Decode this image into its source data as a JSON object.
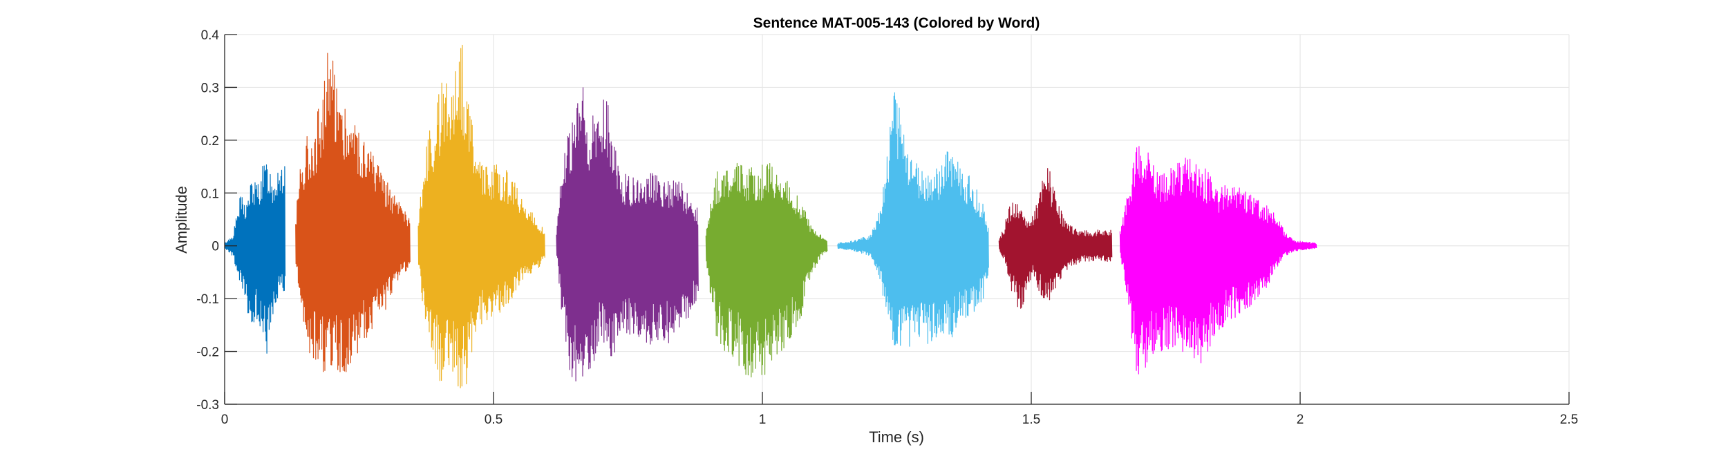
{
  "chart_data": {
    "type": "line",
    "title": "Sentence MAT-005-143 (Colored by Word)",
    "xlabel": "Time (s)",
    "ylabel": "Amplitude",
    "xlim": [
      0,
      2.5
    ],
    "ylim": [
      -0.3,
      0.4
    ],
    "x_ticks": [
      0,
      0.5,
      1,
      1.5,
      2,
      2.5
    ],
    "y_ticks": [
      -0.3,
      -0.2,
      -0.1,
      0,
      0.1,
      0.2,
      0.3,
      0.4
    ],
    "x_tick_labels": [
      "0",
      "0.5",
      "1",
      "1.5",
      "2",
      "2.5"
    ],
    "y_tick_labels": [
      "-0.3",
      "-0.2",
      "-0.1",
      "0",
      "0.1",
      "0.2",
      "0.3",
      "0.4"
    ],
    "grid": true,
    "series": [
      {
        "color": "#0072BD",
        "t_start": 0.0,
        "t_end": 0.113,
        "envelope": [
          [
            0.0,
            0.005,
            -0.005
          ],
          [
            0.015,
            0.02,
            -0.02
          ],
          [
            0.03,
            0.1,
            -0.09
          ],
          [
            0.04,
            0.08,
            -0.12
          ],
          [
            0.05,
            0.13,
            -0.17
          ],
          [
            0.06,
            0.12,
            -0.14
          ],
          [
            0.07,
            0.15,
            -0.2
          ],
          [
            0.08,
            0.17,
            -0.21
          ],
          [
            0.09,
            0.13,
            -0.15
          ],
          [
            0.1,
            0.17,
            -0.1
          ],
          [
            0.113,
            0.16,
            -0.09
          ]
        ]
      },
      {
        "color": "#D95319",
        "t_start": 0.132,
        "t_end": 0.345,
        "envelope": [
          [
            0.132,
            0.05,
            -0.04
          ],
          [
            0.14,
            0.16,
            -0.12
          ],
          [
            0.155,
            0.22,
            -0.2
          ],
          [
            0.17,
            0.24,
            -0.23
          ],
          [
            0.18,
            0.3,
            -0.24
          ],
          [
            0.19,
            0.37,
            -0.25
          ],
          [
            0.2,
            0.37,
            -0.23
          ],
          [
            0.21,
            0.33,
            -0.24
          ],
          [
            0.22,
            0.28,
            -0.25
          ],
          [
            0.24,
            0.25,
            -0.22
          ],
          [
            0.26,
            0.21,
            -0.18
          ],
          [
            0.28,
            0.17,
            -0.15
          ],
          [
            0.3,
            0.13,
            -0.12
          ],
          [
            0.32,
            0.09,
            -0.07
          ],
          [
            0.345,
            0.05,
            -0.04
          ]
        ]
      },
      {
        "color": "#EDB120",
        "t_start": 0.36,
        "t_end": 0.595,
        "envelope": [
          [
            0.36,
            0.05,
            -0.04
          ],
          [
            0.37,
            0.16,
            -0.14
          ],
          [
            0.38,
            0.22,
            -0.2
          ],
          [
            0.39,
            0.24,
            -0.22
          ],
          [
            0.4,
            0.3,
            -0.26
          ],
          [
            0.41,
            0.33,
            -0.25
          ],
          [
            0.42,
            0.35,
            -0.24
          ],
          [
            0.43,
            0.38,
            -0.26
          ],
          [
            0.44,
            0.4,
            -0.28
          ],
          [
            0.45,
            0.33,
            -0.26
          ],
          [
            0.46,
            0.25,
            -0.2
          ],
          [
            0.48,
            0.15,
            -0.14
          ],
          [
            0.5,
            0.16,
            -0.14
          ],
          [
            0.52,
            0.15,
            -0.12
          ],
          [
            0.54,
            0.12,
            -0.09
          ],
          [
            0.56,
            0.08,
            -0.06
          ],
          [
            0.575,
            0.06,
            -0.05
          ],
          [
            0.595,
            0.03,
            -0.03
          ]
        ]
      },
      {
        "color": "#7E2F8E",
        "t_start": 0.617,
        "t_end": 0.88,
        "envelope": [
          [
            0.617,
            0.03,
            -0.02
          ],
          [
            0.625,
            0.15,
            -0.12
          ],
          [
            0.635,
            0.2,
            -0.2
          ],
          [
            0.645,
            0.23,
            -0.26
          ],
          [
            0.655,
            0.27,
            -0.28
          ],
          [
            0.665,
            0.31,
            -0.27
          ],
          [
            0.675,
            0.25,
            -0.27
          ],
          [
            0.69,
            0.25,
            -0.2
          ],
          [
            0.7,
            0.28,
            -0.17
          ],
          [
            0.71,
            0.29,
            -0.2
          ],
          [
            0.72,
            0.24,
            -0.22
          ],
          [
            0.735,
            0.14,
            -0.17
          ],
          [
            0.76,
            0.13,
            -0.17
          ],
          [
            0.79,
            0.14,
            -0.19
          ],
          [
            0.82,
            0.13,
            -0.19
          ],
          [
            0.85,
            0.12,
            -0.16
          ],
          [
            0.88,
            0.07,
            -0.1
          ]
        ]
      },
      {
        "color": "#77AC30",
        "t_start": 0.895,
        "t_end": 1.12,
        "envelope": [
          [
            0.895,
            0.03,
            -0.03
          ],
          [
            0.905,
            0.1,
            -0.12
          ],
          [
            0.915,
            0.14,
            -0.18
          ],
          [
            0.93,
            0.15,
            -0.2
          ],
          [
            0.95,
            0.16,
            -0.22
          ],
          [
            0.97,
            0.15,
            -0.25
          ],
          [
            0.99,
            0.15,
            -0.26
          ],
          [
            1.01,
            0.16,
            -0.24
          ],
          [
            1.03,
            0.14,
            -0.21
          ],
          [
            1.05,
            0.12,
            -0.18
          ],
          [
            1.07,
            0.09,
            -0.14
          ],
          [
            1.09,
            0.04,
            -0.06
          ],
          [
            1.11,
            0.02,
            -0.02
          ],
          [
            1.12,
            0.01,
            -0.01
          ]
        ]
      },
      {
        "color": "#4DBEEE",
        "t_start": 1.14,
        "t_end": 1.42,
        "envelope": [
          [
            1.14,
            0.005,
            -0.005
          ],
          [
            1.17,
            0.01,
            -0.01
          ],
          [
            1.2,
            0.02,
            -0.02
          ],
          [
            1.22,
            0.08,
            -0.07
          ],
          [
            1.23,
            0.17,
            -0.15
          ],
          [
            1.24,
            0.26,
            -0.18
          ],
          [
            1.245,
            0.31,
            -0.2
          ],
          [
            1.255,
            0.26,
            -0.2
          ],
          [
            1.27,
            0.2,
            -0.21
          ],
          [
            1.29,
            0.15,
            -0.19
          ],
          [
            1.31,
            0.14,
            -0.19
          ],
          [
            1.33,
            0.15,
            -0.18
          ],
          [
            1.35,
            0.2,
            -0.18
          ],
          [
            1.37,
            0.15,
            -0.15
          ],
          [
            1.39,
            0.13,
            -0.13
          ],
          [
            1.41,
            0.08,
            -0.1
          ],
          [
            1.42,
            0.04,
            -0.05
          ]
        ]
      },
      {
        "color": "#A2142F",
        "t_start": 1.44,
        "t_end": 1.65,
        "envelope": [
          [
            1.44,
            0.01,
            -0.01
          ],
          [
            1.45,
            0.04,
            -0.03
          ],
          [
            1.46,
            0.08,
            -0.08
          ],
          [
            1.47,
            0.09,
            -0.1
          ],
          [
            1.48,
            0.07,
            -0.14
          ],
          [
            1.49,
            0.06,
            -0.1
          ],
          [
            1.5,
            0.05,
            -0.06
          ],
          [
            1.51,
            0.08,
            -0.08
          ],
          [
            1.52,
            0.13,
            -0.1
          ],
          [
            1.53,
            0.16,
            -0.11
          ],
          [
            1.54,
            0.12,
            -0.09
          ],
          [
            1.55,
            0.08,
            -0.07
          ],
          [
            1.57,
            0.04,
            -0.04
          ],
          [
            1.6,
            0.03,
            -0.03
          ],
          [
            1.65,
            0.03,
            -0.03
          ]
        ]
      },
      {
        "color": "#FF00FF",
        "t_start": 1.665,
        "t_end": 2.03,
        "envelope": [
          [
            1.665,
            0.03,
            -0.02
          ],
          [
            1.675,
            0.08,
            -0.08
          ],
          [
            1.685,
            0.14,
            -0.17
          ],
          [
            1.695,
            0.2,
            -0.24
          ],
          [
            1.705,
            0.2,
            -0.25
          ],
          [
            1.715,
            0.19,
            -0.23
          ],
          [
            1.73,
            0.16,
            -0.21
          ],
          [
            1.75,
            0.14,
            -0.2
          ],
          [
            1.77,
            0.16,
            -0.2
          ],
          [
            1.79,
            0.17,
            -0.2
          ],
          [
            1.81,
            0.16,
            -0.23
          ],
          [
            1.83,
            0.14,
            -0.2
          ],
          [
            1.85,
            0.11,
            -0.16
          ],
          [
            1.87,
            0.13,
            -0.14
          ],
          [
            1.89,
            0.11,
            -0.13
          ],
          [
            1.91,
            0.1,
            -0.12
          ],
          [
            1.93,
            0.08,
            -0.09
          ],
          [
            1.95,
            0.07,
            -0.06
          ],
          [
            1.97,
            0.03,
            -0.02
          ],
          [
            1.99,
            0.01,
            -0.01
          ],
          [
            2.03,
            0.005,
            -0.005
          ]
        ]
      }
    ]
  }
}
